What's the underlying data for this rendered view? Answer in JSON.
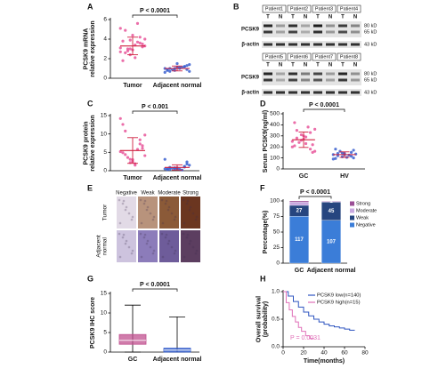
{
  "chart_data": [
    {
      "type": "dotplot",
      "label": "A",
      "annotation": "P < 0.0001",
      "y_label": [
        "PCSK9 mRNA",
        "relative expression"
      ],
      "categories": [
        "Tumor",
        "Adjacent normal"
      ],
      "colors": [
        "#e8559a",
        "#3a5fcf"
      ],
      "values": [
        [
          3.1,
          2.4,
          4.2,
          3.8,
          2.9,
          3.5,
          4.9,
          2.1,
          3.3,
          3.0,
          5.6,
          2.7,
          3.9,
          3.6,
          1.8,
          4.4,
          3.2,
          2.6,
          3.4,
          4.0,
          2.8,
          3.7,
          5.1,
          3.0
        ],
        [
          1.0,
          0.8,
          1.2,
          0.9,
          1.1,
          1.3,
          0.7,
          1.0,
          1.4,
          0.9,
          1.1,
          0.6,
          1.0,
          1.2,
          0.8,
          1.5,
          0.9,
          1.0,
          1.1,
          0.7
        ]
      ],
      "mean": [
        3.3,
        1.0
      ],
      "sd": [
        0.9,
        0.25
      ],
      "ylim": [
        0,
        6
      ],
      "yticks": [
        0,
        2,
        4,
        6
      ]
    },
    {
      "type": "dotplot",
      "label": "C",
      "annotation": "P < 0.001",
      "y_label": [
        "PCSK9 protein",
        "relative expression"
      ],
      "categories": [
        "Tumor",
        "Adjacent normal"
      ],
      "colors": [
        "#e8559a",
        "#3a5fcf"
      ],
      "values": [
        [
          5.2,
          3.1,
          8.4,
          12.6,
          2.5,
          6.8,
          4.4,
          1.9,
          9.7,
          3.6,
          5.8,
          14.2,
          2.2,
          7.3,
          4.9,
          3.0,
          6.1,
          10.8,
          1.5,
          4.1
        ],
        [
          0.5,
          0.8,
          1.2,
          0.3,
          0.6,
          2.4,
          0.9,
          0.4,
          1.5,
          0.7,
          0.2,
          3.1,
          0.6,
          1.0,
          0.5,
          0.8,
          1.8,
          0.4
        ]
      ],
      "mean": [
        5.5,
        0.9
      ],
      "sd": [
        3.5,
        0.7
      ],
      "ylim": [
        0,
        15
      ],
      "yticks": [
        0,
        5,
        10,
        15
      ]
    },
    {
      "type": "dotplot",
      "label": "D",
      "annotation": "P < 0.0001",
      "y_label": [
        "Serum PCSK9(ng/ml)"
      ],
      "categories": [
        "GC",
        "HV"
      ],
      "colors": [
        "#e8559a",
        "#3a5fcf"
      ],
      "values": [
        [
          250,
          310,
          180,
          420,
          270,
          220,
          350,
          290,
          160,
          240,
          380,
          200,
          260,
          330,
          210,
          300,
          150,
          280,
          230,
          360
        ],
        [
          130,
          110,
          150,
          95,
          140,
          170,
          120,
          105,
          135,
          160,
          125,
          90,
          145,
          115,
          180,
          130,
          100,
          140
        ]
      ],
      "mean": [
        265,
        130
      ],
      "sd": [
        70,
        25
      ],
      "ylim": [
        0,
        500
      ],
      "yticks": [
        0,
        100,
        200,
        300,
        400,
        500
      ]
    },
    {
      "type": "stacked_bar",
      "label": "F",
      "annotation": "P < 0.0001",
      "y_label": [
        "Percentage(%)"
      ],
      "categories": [
        "GC",
        "Adjacent normal"
      ],
      "series": [
        {
          "name": "Negative",
          "color": "#3b7dd8",
          "values": [
            117,
            107
          ],
          "value_labels": [
            "117",
            "107"
          ]
        },
        {
          "name": "Weak",
          "color": "#26457f",
          "values": [
            27,
            45
          ],
          "value_labels": [
            "27",
            "45"
          ]
        },
        {
          "name": "Moderate",
          "color": "#c9a9e0",
          "values": [
            8,
            2
          ],
          "value_labels": [
            null,
            null
          ]
        },
        {
          "name": "Strong",
          "color": "#9b4f96",
          "values": [
            3,
            1
          ],
          "value_labels": [
            null,
            "1"
          ]
        }
      ],
      "ylim": [
        0,
        155
      ],
      "yticks": [
        0,
        {
          "value": 38.75,
          "label": "25"
        },
        {
          "value": 77.5,
          "label": "50"
        },
        {
          "value": 116.25,
          "label": "75"
        },
        {
          "value": 155,
          "label": "100"
        }
      ]
    },
    {
      "type": "box",
      "label": "G",
      "annotation": "P < 0.0001",
      "y_label": [
        "PCSK9 IHC score"
      ],
      "categories": [
        "GC",
        "Adjacent normal"
      ],
      "colors": [
        "#c0508f",
        "#2a55c8"
      ],
      "min": [
        0,
        0
      ],
      "q1": [
        2,
        0
      ],
      "median": [
        3,
        0.5
      ],
      "q3": [
        4.5,
        1
      ],
      "max": [
        12,
        9
      ],
      "ylim": [
        0,
        15
      ],
      "yticks": [
        0,
        5,
        10,
        15
      ]
    },
    {
      "type": "km",
      "label": "H",
      "annotation": "P = 0.0031",
      "y_label": [
        "Overall survival",
        "(probability)"
      ],
      "x_label": "Time(months)",
      "series": [
        {
          "name": "PCSK9 low(n=140)",
          "color": "#2f55c0",
          "x": [
            0,
            5,
            10,
            15,
            20,
            25,
            30,
            35,
            40,
            45,
            50,
            55,
            60,
            65,
            70
          ],
          "values": [
            1,
            0.92,
            0.82,
            0.72,
            0.63,
            0.56,
            0.5,
            0.45,
            0.41,
            0.38,
            0.36,
            0.34,
            0.32,
            0.3,
            0.3
          ]
        },
        {
          "name": "PCSK9 high(n=15)",
          "color": "#e070b8",
          "x": [
            0,
            3,
            6,
            9,
            12,
            15,
            18,
            22,
            26,
            30
          ],
          "values": [
            1,
            0.8,
            0.67,
            0.55,
            0.45,
            0.35,
            0.28,
            0.2,
            0.15,
            0.15
          ]
        }
      ],
      "xlim": [
        0,
        80
      ],
      "xticks": [
        0,
        20,
        40,
        60,
        80
      ],
      "ylim": [
        0,
        1
      ],
      "yticks": [
        {
          "value": 0,
          "label": "0.0"
        },
        {
          "value": 0.5,
          "label": "0.5"
        },
        {
          "value": 1,
          "label": "1.0"
        }
      ]
    }
  ],
  "blot": {
    "label": "B",
    "groups": [
      [
        "Patient1",
        "Patient2",
        "Patient3",
        "Patient4"
      ],
      [
        "Patient5",
        "Patient6",
        "Patient7",
        "Patient8"
      ]
    ],
    "lanes": [
      "T",
      "N"
    ],
    "rows": [
      "PCSK9",
      "β-actin"
    ],
    "markers": [
      "80 kD",
      "65 kD",
      "43 kD"
    ]
  },
  "ihc": {
    "label": "E",
    "columns": [
      "Negative",
      "Weak",
      "Moderate",
      "Strong"
    ],
    "rows": [
      [
        "Tumor"
      ],
      [
        "Adjacent",
        "normal"
      ]
    ]
  }
}
